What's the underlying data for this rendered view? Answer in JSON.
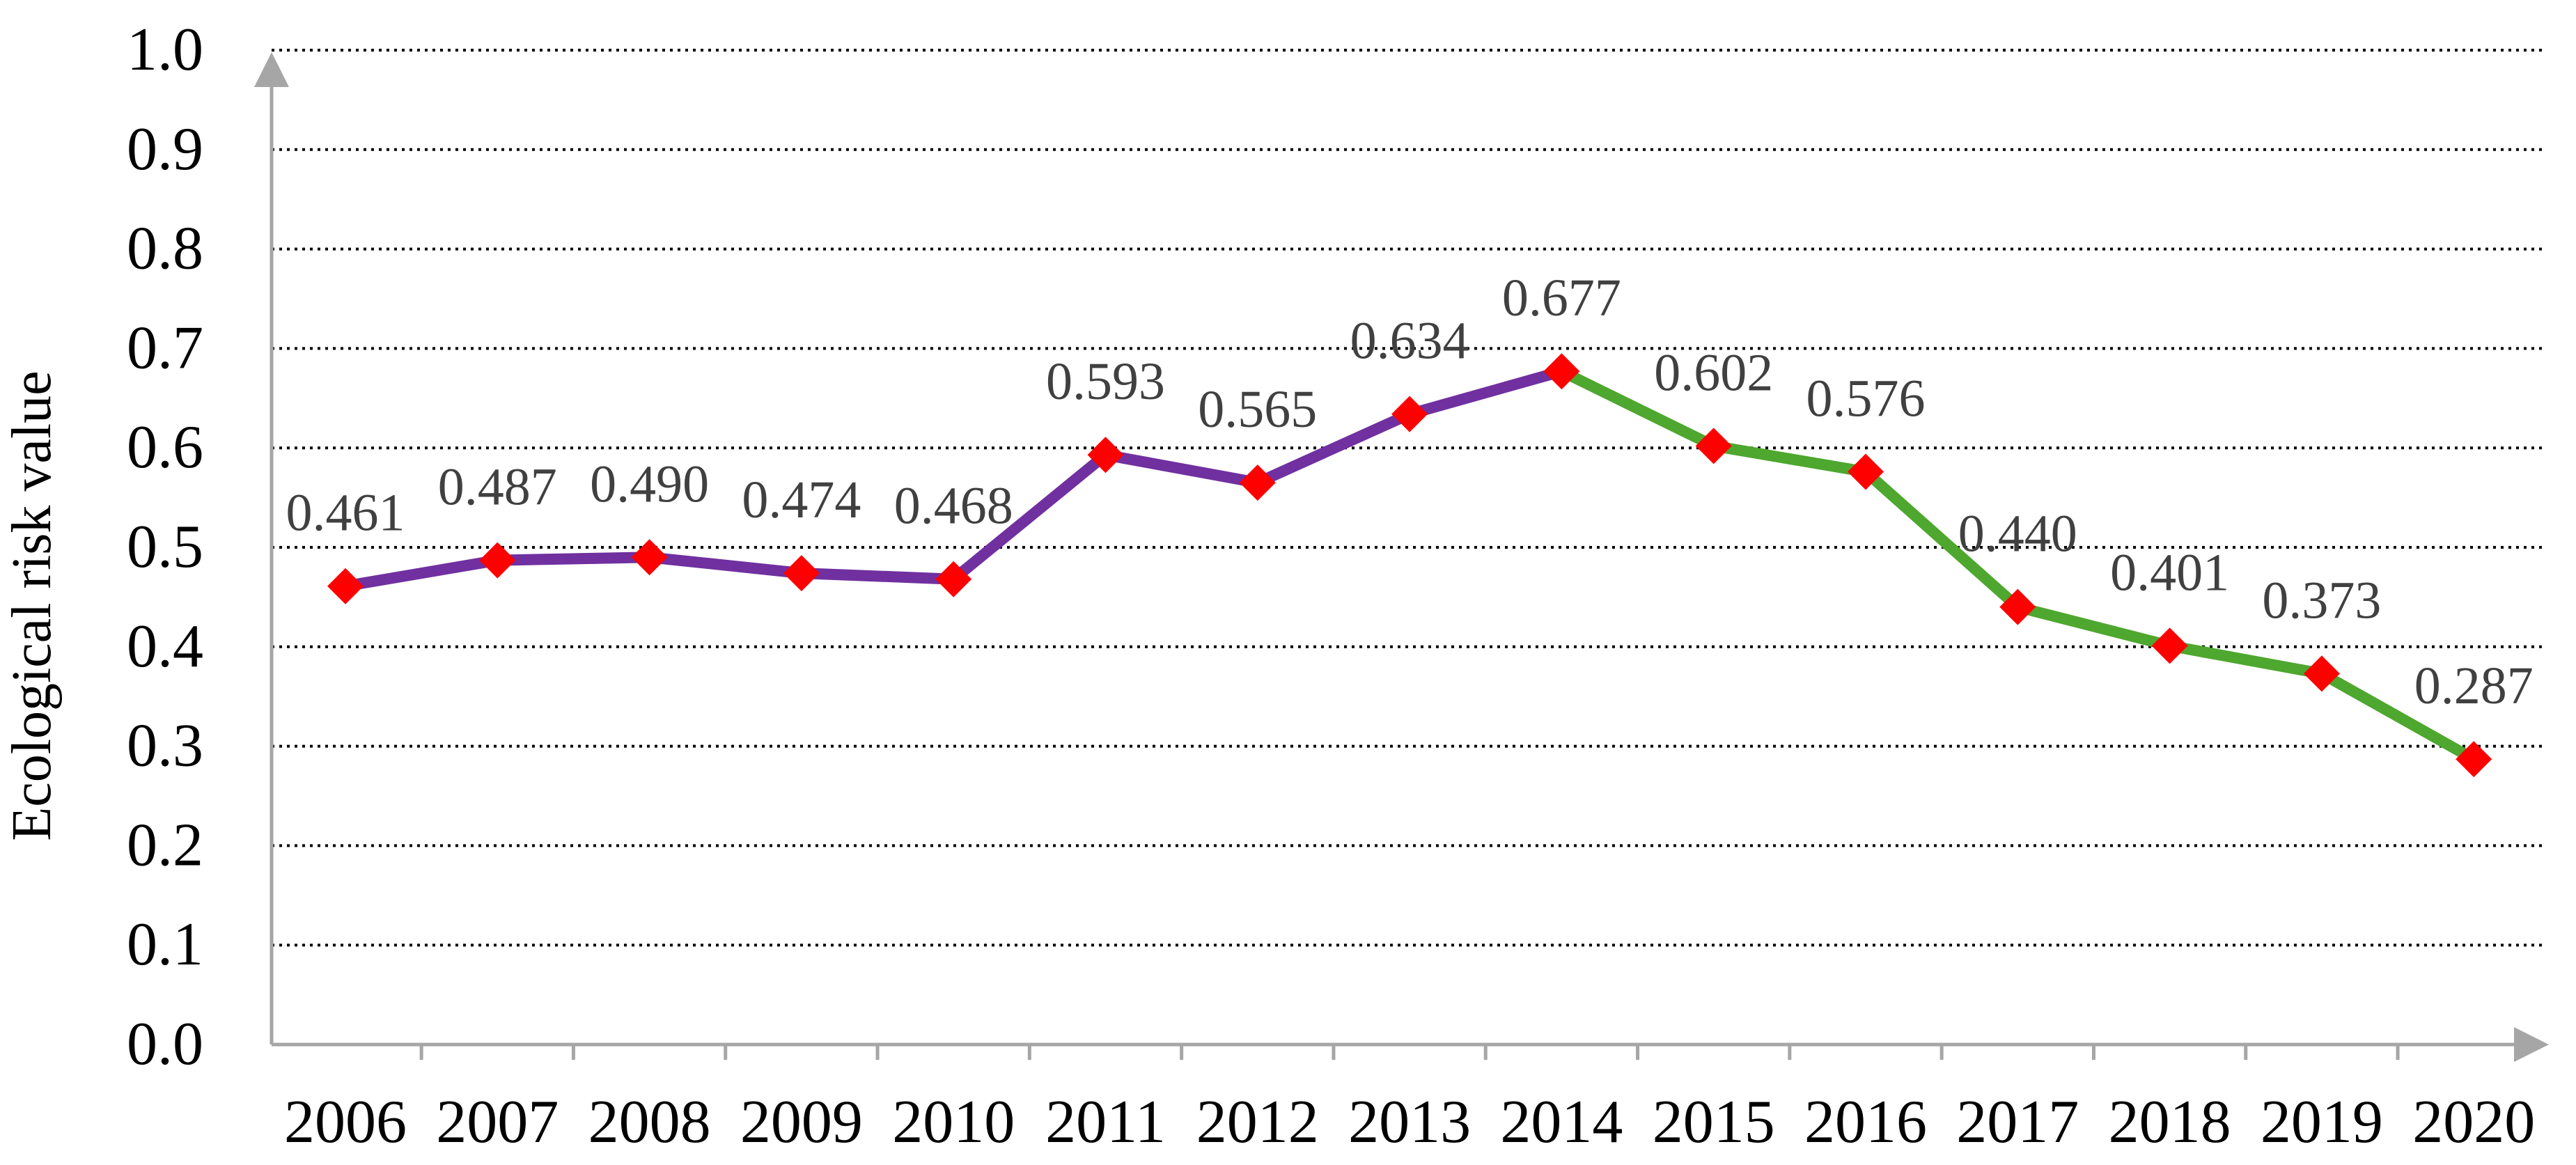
{
  "chart_data": {
    "type": "line",
    "title": "",
    "xlabel": "",
    "ylabel": "Ecological risk value",
    "ylim": [
      0.0,
      1.0
    ],
    "yticks": [
      "0.0",
      "0.1",
      "0.2",
      "0.3",
      "0.4",
      "0.5",
      "0.6",
      "0.7",
      "0.8",
      "0.9",
      "1.0"
    ],
    "categories": [
      "2006",
      "2007",
      "2008",
      "2009",
      "2010",
      "2011",
      "2012",
      "2013",
      "2014",
      "2015",
      "2016",
      "2017",
      "2018",
      "2019",
      "2020"
    ],
    "values": [
      0.461,
      0.487,
      0.49,
      0.474,
      0.468,
      0.593,
      0.565,
      0.634,
      0.677,
      0.602,
      0.576,
      0.44,
      0.401,
      0.373,
      0.287
    ],
    "data_labels": [
      "0.461",
      "0.487",
      "0.490",
      "0.474",
      "0.468",
      "0.593",
      "0.565",
      "0.634",
      "0.677",
      "0.602",
      "0.576",
      "0.440",
      "0.401",
      "0.373",
      "0.287"
    ],
    "segments": [
      {
        "from": "2006",
        "to": "2014",
        "color": "#7030A0"
      },
      {
        "from": "2014",
        "to": "2020",
        "color": "#4EA72E"
      }
    ],
    "marker": {
      "shape": "diamond",
      "color": "#FF0000"
    },
    "grid": "horizontal-dotted",
    "legend": "none",
    "colors": {
      "axis": "#A6A6A6",
      "grid": "#000000",
      "text": "#000000",
      "data_label": "#404040"
    }
  }
}
